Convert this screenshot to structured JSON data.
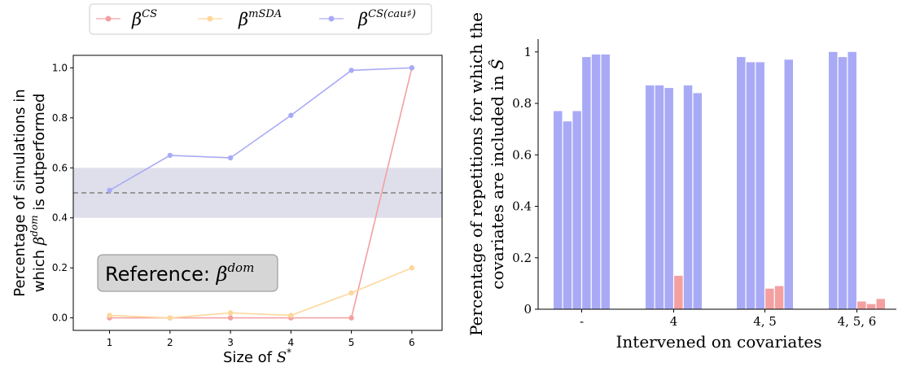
{
  "legend": {
    "entries": [
      {
        "symbol": "β",
        "sup": "CS",
        "color": "#f4a0a0"
      },
      {
        "symbol": "β",
        "sup": "mSDA",
        "color": "#fdd79a"
      },
      {
        "symbol": "β",
        "sup": "CS(cau♯)",
        "color": "#a9aaf6"
      }
    ]
  },
  "chart_data": [
    {
      "type": "line",
      "xlabel": "Size of S*",
      "xlabel_main": "Size of ",
      "xlabel_symbol": "S",
      "xlabel_sup": "*",
      "ylabel_line1": "Percentage of simulations in",
      "ylabel_line2_a": "which ",
      "ylabel_line2_symbol": "β",
      "ylabel_line2_sup": "dom",
      "ylabel_line2_b": " is outperformed",
      "x": [
        1,
        2,
        3,
        4,
        5,
        6
      ],
      "xlim": [
        0.4,
        6.5
      ],
      "ylim": [
        -0.05,
        1.05
      ],
      "x_ticks": [
        "1",
        "2",
        "3",
        "4",
        "5",
        "6"
      ],
      "y_ticks": [
        "0.0",
        "0.2",
        "0.4",
        "0.6",
        "0.8",
        "1.0"
      ],
      "y_tick_values": [
        0.0,
        0.2,
        0.4,
        0.6,
        0.8,
        1.0
      ],
      "series": [
        {
          "key": "cs",
          "values": [
            0.0,
            0.0,
            0.0,
            0.0,
            0.0,
            1.0
          ],
          "color": "#f4a0a0"
        },
        {
          "key": "msda",
          "values": [
            0.01,
            0.0,
            0.02,
            0.01,
            0.1,
            0.2
          ],
          "color": "#fdd79a"
        },
        {
          "key": "cscau",
          "values": [
            0.51,
            0.65,
            0.64,
            0.81,
            0.99,
            1.0
          ],
          "color": "#a9aaf6"
        }
      ],
      "reference_line": 0.5,
      "reference_band": [
        0.4,
        0.6
      ],
      "band_color": "#dedfea",
      "reference_box": {
        "text": "Reference: ",
        "symbol": "β",
        "sup": "dom"
      }
    },
    {
      "type": "bar",
      "xlabel": "Intervened on covariates",
      "ylabel_line1": "Percentage of repetitions for which the",
      "ylabel_line2": "covariates are included in",
      "ylabel_symbol": "Ŝ",
      "categories": [
        "-",
        "4",
        "4, 5",
        "4, 5, 6"
      ],
      "y_ticks": [
        "0",
        "0.2",
        "0.4",
        "0.6",
        "0.8",
        "1"
      ],
      "y_tick_values": [
        0,
        0.2,
        0.4,
        0.6,
        0.8,
        1
      ],
      "ylim": [
        0,
        1.05
      ],
      "covariates_per_group": 6,
      "values": [
        [
          0.77,
          0.73,
          0.77,
          0.98,
          0.99,
          0.99
        ],
        [
          0.87,
          0.87,
          0.86,
          0.13,
          0.87,
          0.84
        ],
        [
          0.98,
          0.96,
          0.96,
          0.08,
          0.09,
          0.97
        ],
        [
          1.0,
          0.98,
          1.0,
          0.03,
          0.02,
          0.04
        ]
      ],
      "intervened_flags": [
        [
          false,
          false,
          false,
          false,
          false,
          false
        ],
        [
          false,
          false,
          false,
          true,
          false,
          false
        ],
        [
          false,
          false,
          false,
          true,
          true,
          false
        ],
        [
          false,
          false,
          false,
          true,
          true,
          true
        ]
      ],
      "colors": {
        "not_intervened": "#a9aaf6",
        "intervened": "#f4a0a0"
      }
    }
  ]
}
